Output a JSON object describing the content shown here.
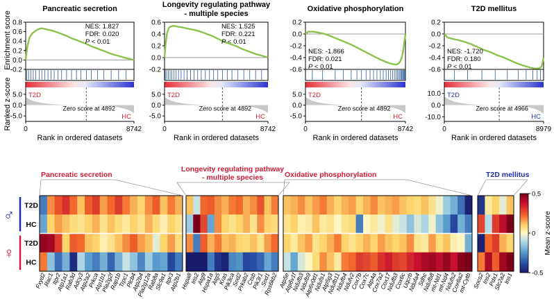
{
  "chart_data": [
    {
      "type": "line",
      "title": "Pancreatic secretion",
      "nes": "NES: 1.827",
      "fdr": "FDR: 0.020",
      "p_italic": "P",
      "p_rest": " < 0.01",
      "stat_pos": "top-right",
      "xmax": 8742,
      "xmax_label": "8742",
      "ylim": [
        -0.2,
        0.8
      ],
      "yticks": [
        "0.8",
        "0.6",
        "0.4",
        "0.2",
        "0.0",
        "-0.2"
      ],
      "es_x": [
        0,
        120,
        300,
        520,
        760,
        1000,
        1250,
        1500,
        1800,
        2150,
        2500,
        2900,
        3300,
        3700,
        4100,
        4500,
        4900,
        5300,
        5700,
        6100,
        6500,
        6900,
        7300,
        7700,
        8100,
        8400,
        8742
      ],
      "es_y": [
        0.0,
        0.26,
        0.47,
        0.56,
        0.61,
        0.65,
        0.67,
        0.66,
        0.64,
        0.62,
        0.59,
        0.55,
        0.51,
        0.46,
        0.42,
        0.38,
        0.34,
        0.29,
        0.25,
        0.21,
        0.17,
        0.13,
        0.1,
        0.07,
        0.04,
        0.02,
        0.0
      ],
      "ticks_x": [
        80,
        240,
        420,
        610,
        820,
        1100,
        1300,
        1550,
        1800,
        2050,
        2300,
        2600,
        2900,
        3300,
        3700,
        4100,
        4450,
        4900,
        5300,
        5800,
        6300,
        6900,
        7500,
        8100
      ],
      "zlabel_left": "T2D",
      "zlabel_right": "HC",
      "zero_label": "Zero score at 4892",
      "zero_x": 4892,
      "zticks": [
        "5.0",
        "0.0",
        "-5.0"
      ],
      "ztick_vals": [
        5,
        0,
        -5
      ],
      "zlim": [
        -7.5,
        7.5
      ]
    },
    {
      "type": "line",
      "title": "Longevity regulating pathway",
      "title2": "- multiple species",
      "nes": "NES: 1.525",
      "fdr": "FDR: 0.221",
      "p_italic": "P",
      "p_rest": " < 0.01",
      "stat_pos": "top-right",
      "xmax": 8742,
      "xmax_label": "8742",
      "ylim": [
        -0.2,
        0.6
      ],
      "yticks": [
        "0.6",
        "0.4",
        "0.2",
        "0.0",
        "-0.2"
      ],
      "es_x": [
        0,
        90,
        220,
        380,
        560,
        760,
        980,
        1200,
        1450,
        1750,
        2100,
        2500,
        2900,
        3300,
        3700,
        4100,
        4500,
        4900,
        5300,
        5700,
        6100,
        6500,
        6900,
        7300,
        7700,
        8100,
        8742
      ],
      "es_y": [
        0.0,
        0.22,
        0.42,
        0.51,
        0.53,
        0.54,
        0.53,
        0.52,
        0.515,
        0.5,
        0.485,
        0.47,
        0.45,
        0.42,
        0.39,
        0.36,
        0.32,
        0.28,
        0.25,
        0.22,
        0.19,
        0.15,
        0.12,
        0.09,
        0.06,
        0.04,
        0.0
      ],
      "ticks_x": [
        60,
        180,
        320,
        470,
        620,
        800,
        980,
        1180,
        1400,
        1650,
        1900,
        2200,
        2500,
        2800,
        3100,
        3450,
        3800,
        4150,
        4500,
        4900,
        5300,
        5700,
        6200,
        6700,
        7200,
        7700,
        8200
      ],
      "zlabel_left": "T2D",
      "zlabel_right": "HC",
      "zero_label": "Zero score at 4892",
      "zero_x": 4892,
      "zticks": [
        "5.0",
        "0.0",
        "-5.0"
      ],
      "ztick_vals": [
        5,
        0,
        -5
      ],
      "zlim": [
        -7.5,
        7.5
      ]
    },
    {
      "type": "line",
      "title": "Oxidative phosphorylation",
      "nes": "NES: -1.866",
      "fdr": "FDR: 0.021",
      "p_italic": "P",
      "p_rest": " < 0.01",
      "stat_pos": "bottom-left",
      "xmax": 8742,
      "xmax_label": "8742",
      "ylim": [
        -0.6,
        0.2
      ],
      "yticks": [
        "0.2",
        "0.0",
        "-0.2",
        "-0.4",
        "-0.6"
      ],
      "es_x": [
        0,
        250,
        600,
        1000,
        1500,
        2000,
        2500,
        3000,
        3500,
        4000,
        4500,
        5000,
        5500,
        6000,
        6500,
        7000,
        7400,
        7700,
        7950,
        8150,
        8300,
        8420,
        8520,
        8600,
        8660,
        8710,
        8742
      ],
      "es_y": [
        0.0,
        0.04,
        0.04,
        0.03,
        0.01,
        -0.02,
        -0.06,
        -0.1,
        -0.14,
        -0.18,
        -0.23,
        -0.28,
        -0.33,
        -0.38,
        -0.43,
        -0.47,
        -0.5,
        -0.51,
        -0.52,
        -0.5,
        -0.46,
        -0.4,
        -0.31,
        -0.21,
        -0.12,
        -0.05,
        0.0
      ],
      "ticks_x": [
        600,
        1500,
        2600,
        3300,
        4000,
        4500,
        4900,
        5300,
        5650,
        5950,
        6250,
        6550,
        6800,
        7050,
        7250,
        7450,
        7620,
        7780,
        7920,
        8040,
        8150,
        8250,
        8340,
        8420,
        8490,
        8560,
        8620,
        8680,
        8720
      ],
      "zlabel_left": "T2D",
      "zlabel_right": "HC",
      "zero_label": "Zero score at 4892",
      "zero_x": 4892,
      "zticks": [
        "5.0",
        "0.0",
        "-5.0"
      ],
      "ztick_vals": [
        5,
        0,
        -5
      ],
      "zlim": [
        -7.5,
        7.5
      ]
    },
    {
      "type": "line",
      "title": "T2D mellitus",
      "nes": "NES: -1.720",
      "fdr": "FDR: 0.180",
      "p_italic": "P",
      "p_rest": " < 0.01",
      "stat_pos": "bottom-left",
      "xmax": 8979,
      "xmax_label": "8979",
      "ylim": [
        -0.6,
        0.2
      ],
      "yticks": [
        "0.2",
        "0.0",
        "-0.2",
        "-0.4",
        "-0.6"
      ],
      "es_x": [
        0,
        300,
        700,
        1200,
        1800,
        2400,
        3000,
        3600,
        4200,
        4800,
        5400,
        6000,
        6600,
        7200,
        7800,
        8300,
        8600,
        8800,
        8900,
        8979
      ],
      "es_y": [
        0.0,
        -0.06,
        -0.08,
        -0.1,
        -0.13,
        -0.17,
        -0.22,
        -0.27,
        -0.31,
        -0.36,
        -0.4,
        -0.45,
        -0.5,
        -0.54,
        -0.57,
        -0.59,
        -0.58,
        -0.55,
        -0.48,
        -0.4
      ],
      "ticks_x": [
        900,
        2100,
        3400,
        4600,
        5700,
        6700,
        7400,
        8000,
        8400,
        8700
      ],
      "zlabel_left": "T2D",
      "zlabel_right": "HC",
      "zero_label": "Zero score at 4966",
      "zero_x": 4966,
      "zticks": [
        "10.0",
        "0.0",
        "-10.0"
      ],
      "ztick_vals": [
        10,
        0,
        -10
      ],
      "zlim": [
        -14,
        14
      ]
    }
  ],
  "axes_text": {
    "es_ylabel": "Enrichment score",
    "z_ylabel": "Ranked z-score",
    "xlabel": "Rank in ordered datasets",
    "x0": "0"
  },
  "heatmap": {
    "type": "heatmap",
    "colorbar_label": "Mean z-score",
    "colorbar_ticks": [
      "0.5",
      "0",
      "-0.5"
    ],
    "colorbar_tick_vals": [
      0.5,
      0,
      -0.5
    ],
    "vmin": -0.5,
    "vmax": 0.5,
    "sex_symbols": [
      {
        "symbol": "♂",
        "color": "#1f2fa8"
      },
      {
        "symbol": "♀",
        "color": "#d01c38"
      }
    ],
    "rows": [
      "T2D",
      "HC",
      "T2D",
      "HC"
    ],
    "blocks": [
      {
        "title": "Pancreatic secretion",
        "title_color": "#d01c38",
        "genes": [
          "Fxyd2",
          "Rac1",
          "Itpr2",
          "Atp1a1",
          "Rab3d",
          "Adcy3",
          "Atp2a2",
          "Prkca",
          "Atp1b1",
          "Pla2g2f",
          "Rap1b",
          "Trpc1",
          "Plcb4",
          "Atp2b4",
          "Pla2g12a",
          "Rab8a",
          "Slc9a1",
          "Itpr3",
          "Atp2b1"
        ],
        "values": [
          [
            -0.3,
            0.18,
            0.26,
            0.32,
            0.22,
            0.12,
            0.24,
            0.3,
            0.16,
            0.22,
            0.3,
            0.2,
            0.14,
            0.1,
            0.18,
            0.24,
            0.12,
            0.2,
            0.14
          ],
          [
            -0.22,
            0.1,
            0.16,
            0.12,
            0.08,
            0.06,
            0.1,
            0.14,
            0.06,
            0.12,
            0.08,
            0.04,
            0.1,
            0.06,
            0.14,
            0.08,
            0.02,
            0.1,
            0.06
          ],
          [
            0.46,
            0.44,
            0.3,
            0.1,
            0.24,
            0.22,
            0.12,
            0.1,
            0.02,
            0.06,
            0.12,
            0.18,
            0.24,
            0.16,
            0.12,
            -0.04,
            0.1,
            0.16,
            0.08
          ],
          [
            0.2,
            -0.16,
            -0.32,
            -0.2,
            -0.46,
            -0.12,
            -0.24,
            -0.3,
            -0.2,
            -0.34,
            -0.2,
            -0.08,
            -0.16,
            -0.28,
            -0.14,
            -0.24,
            -0.22,
            -0.4,
            -0.3
          ]
        ]
      },
      {
        "title": "Longevity regulating pathway",
        "title2": "- multiple species",
        "title_color": "#d01c38",
        "genes": [
          "Hspa8",
          "Ins2",
          "Atg9",
          "Hspa1a",
          "Atg5",
          "Kras",
          "Pik3ca",
          "Sod2",
          "Prkab2",
          "Ctsb",
          "Pik3r1",
          "Sod1",
          "Rps6kb2"
        ],
        "values": [
          [
            0.12,
            -0.08,
            0.22,
            0.24,
            0.18,
            0.14,
            0.2,
            0.22,
            0.14,
            0.18,
            0.26,
            0.12,
            0.2
          ],
          [
            -0.14,
            0.6,
            0.28,
            -0.22,
            0.18,
            0.1,
            0.06,
            0.1,
            0.14,
            0.06,
            0.18,
            0.1,
            0.08
          ],
          [
            0.18,
            -0.3,
            0.24,
            0.14,
            0.2,
            0.12,
            0.14,
            0.1,
            0.08,
            0.12,
            0.06,
            0.16,
            0.22
          ],
          [
            -0.58,
            -0.56,
            -0.54,
            -0.3,
            -0.44,
            -0.48,
            -0.28,
            -0.26,
            -0.4,
            -0.38,
            -0.34,
            -0.22,
            -0.3
          ]
        ]
      },
      {
        "title": "Oxidative phosphorylation",
        "title_color": "#d01c38",
        "genes": [
          "Atp5e",
          "Atp6v1f",
          "Ndufb3",
          "Ndufb9",
          "Atp6v0d1",
          "Ndufs1",
          "Atp5g3",
          "Ndufb11",
          "Ndufb4",
          "Ndufv2",
          "Cox7b",
          "Cox7c",
          "Atp4a",
          "Cox7a2",
          "Cox17",
          "Ndufb3",
          "Cox6c",
          "Uqcrb",
          "Ndufa4",
          "Sdhc",
          "Ndufb8",
          "mt-Nd1",
          "mt-Nd4",
          "Ndufs2",
          "Cox6a2",
          "mt-Cytb"
        ],
        "values": [
          [
            0.12,
            0.14,
            0.18,
            0.12,
            0.16,
            0.2,
            0.14,
            0.1,
            0.14,
            0.16,
            0.1,
            0.14,
            0.18,
            0.12,
            0.14,
            0.16,
            0.12,
            0.1,
            0.08,
            0.12,
            0.06,
            -0.02,
            -0.14,
            -0.2,
            -0.32,
            -0.48
          ],
          [
            0.06,
            0.1,
            0.02,
            0.04,
            0.12,
            0.04,
            0.06,
            0.0,
            0.06,
            0.08,
            -0.3,
            0.0,
            0.04,
            -0.02,
            0.06,
            -0.04,
            -0.08,
            -0.16,
            -0.06,
            -0.12,
            -0.02,
            -0.16,
            -0.24,
            -0.4,
            -0.2,
            -0.3
          ],
          [
            0.1,
            0.04,
            0.12,
            0.16,
            0.06,
            0.1,
            0.14,
            0.2,
            0.1,
            0.06,
            0.1,
            0.14,
            0.1,
            0.16,
            0.12,
            0.1,
            0.12,
            0.18,
            0.06,
            0.04,
            0.16,
            0.08,
            0.12,
            0.02,
            0.0,
            -0.2
          ],
          [
            -0.08,
            -0.22,
            -0.06,
            0.0,
            0.08,
            0.18,
            0.12,
            0.04,
            0.2,
            0.22,
            0.3,
            0.28,
            0.24,
            0.32,
            0.36,
            0.3,
            0.28,
            0.34,
            0.38,
            0.42,
            0.44,
            0.4,
            0.46,
            0.38,
            0.48,
            0.5
          ]
        ]
      },
      {
        "title": "T2D mellitus",
        "title_color": "#1f2fa8",
        "genes": [
          "Socs2",
          "Ins2",
          "Pdx1",
          "Slc2a2",
          "Ins1"
        ],
        "values": [
          [
            -0.44,
            0.04,
            0.1,
            -0.04,
            0.12
          ],
          [
            0.28,
            -0.1,
            0.3,
            0.4,
            0.58
          ],
          [
            -0.48,
            0.22,
            0.3,
            0.14,
            0.1
          ],
          [
            0.2,
            0.42,
            0.24,
            0.44,
            0.5
          ]
        ]
      }
    ]
  }
}
